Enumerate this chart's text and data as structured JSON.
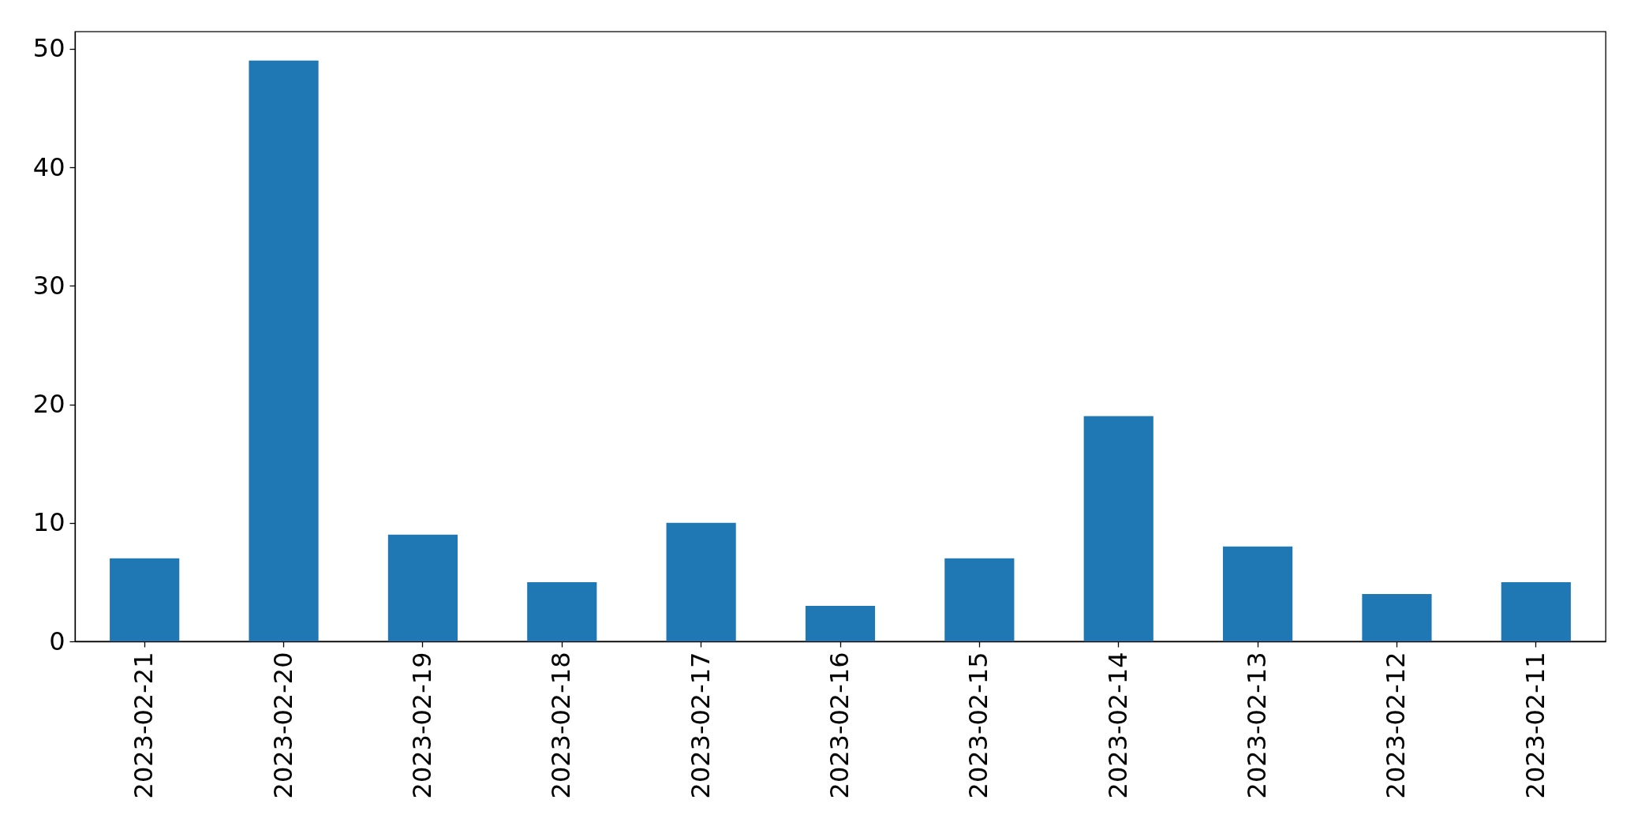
{
  "chart_data": {
    "type": "bar",
    "categories": [
      "2023-02-21",
      "2023-02-20",
      "2023-02-19",
      "2023-02-18",
      "2023-02-17",
      "2023-02-16",
      "2023-02-15",
      "2023-02-14",
      "2023-02-13",
      "2023-02-12",
      "2023-02-11"
    ],
    "values": [
      7,
      49,
      9,
      5,
      10,
      3,
      7,
      19,
      8,
      4,
      5
    ],
    "color": "#1f77b4",
    "ylim": [
      0,
      51.45
    ],
    "yticks": [
      0,
      10,
      20,
      30,
      40,
      50
    ]
  }
}
